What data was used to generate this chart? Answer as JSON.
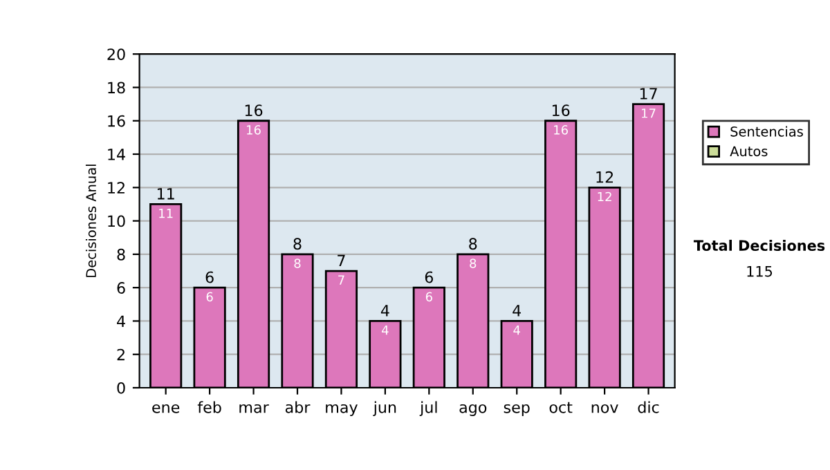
{
  "chart_data": {
    "type": "bar",
    "ylabel": "Decisiones Anual",
    "categories": [
      "ene",
      "feb",
      "mar",
      "abr",
      "may",
      "jun",
      "jul",
      "ago",
      "sep",
      "oct",
      "nov",
      "dic"
    ],
    "stacked": true,
    "series": [
      {
        "name": "Sentencias",
        "color": "#dd77bb",
        "values": [
          11,
          6,
          16,
          8,
          7,
          4,
          6,
          8,
          4,
          16,
          12,
          17
        ],
        "value_labels": [
          "11",
          "6",
          "16",
          "8",
          "7",
          "4",
          "6",
          "8",
          "4",
          "16",
          "12",
          "17"
        ]
      },
      {
        "name": "Autos",
        "color": "#ccdd99",
        "values": [
          0,
          0,
          0,
          0,
          0,
          0,
          0,
          0,
          0,
          0,
          0,
          0
        ]
      }
    ],
    "totals": [
      "11",
      "6",
      "16",
      "8",
      "7",
      "4",
      "6",
      "8",
      "4",
      "16",
      "12",
      "17"
    ],
    "ylim": [
      0,
      20
    ],
    "yticks": [
      0,
      2,
      4,
      6,
      8,
      10,
      12,
      14,
      16,
      18,
      20
    ],
    "grid": "y",
    "legend": "right",
    "annotations": [
      "Total Decisiones",
      "115"
    ]
  }
}
